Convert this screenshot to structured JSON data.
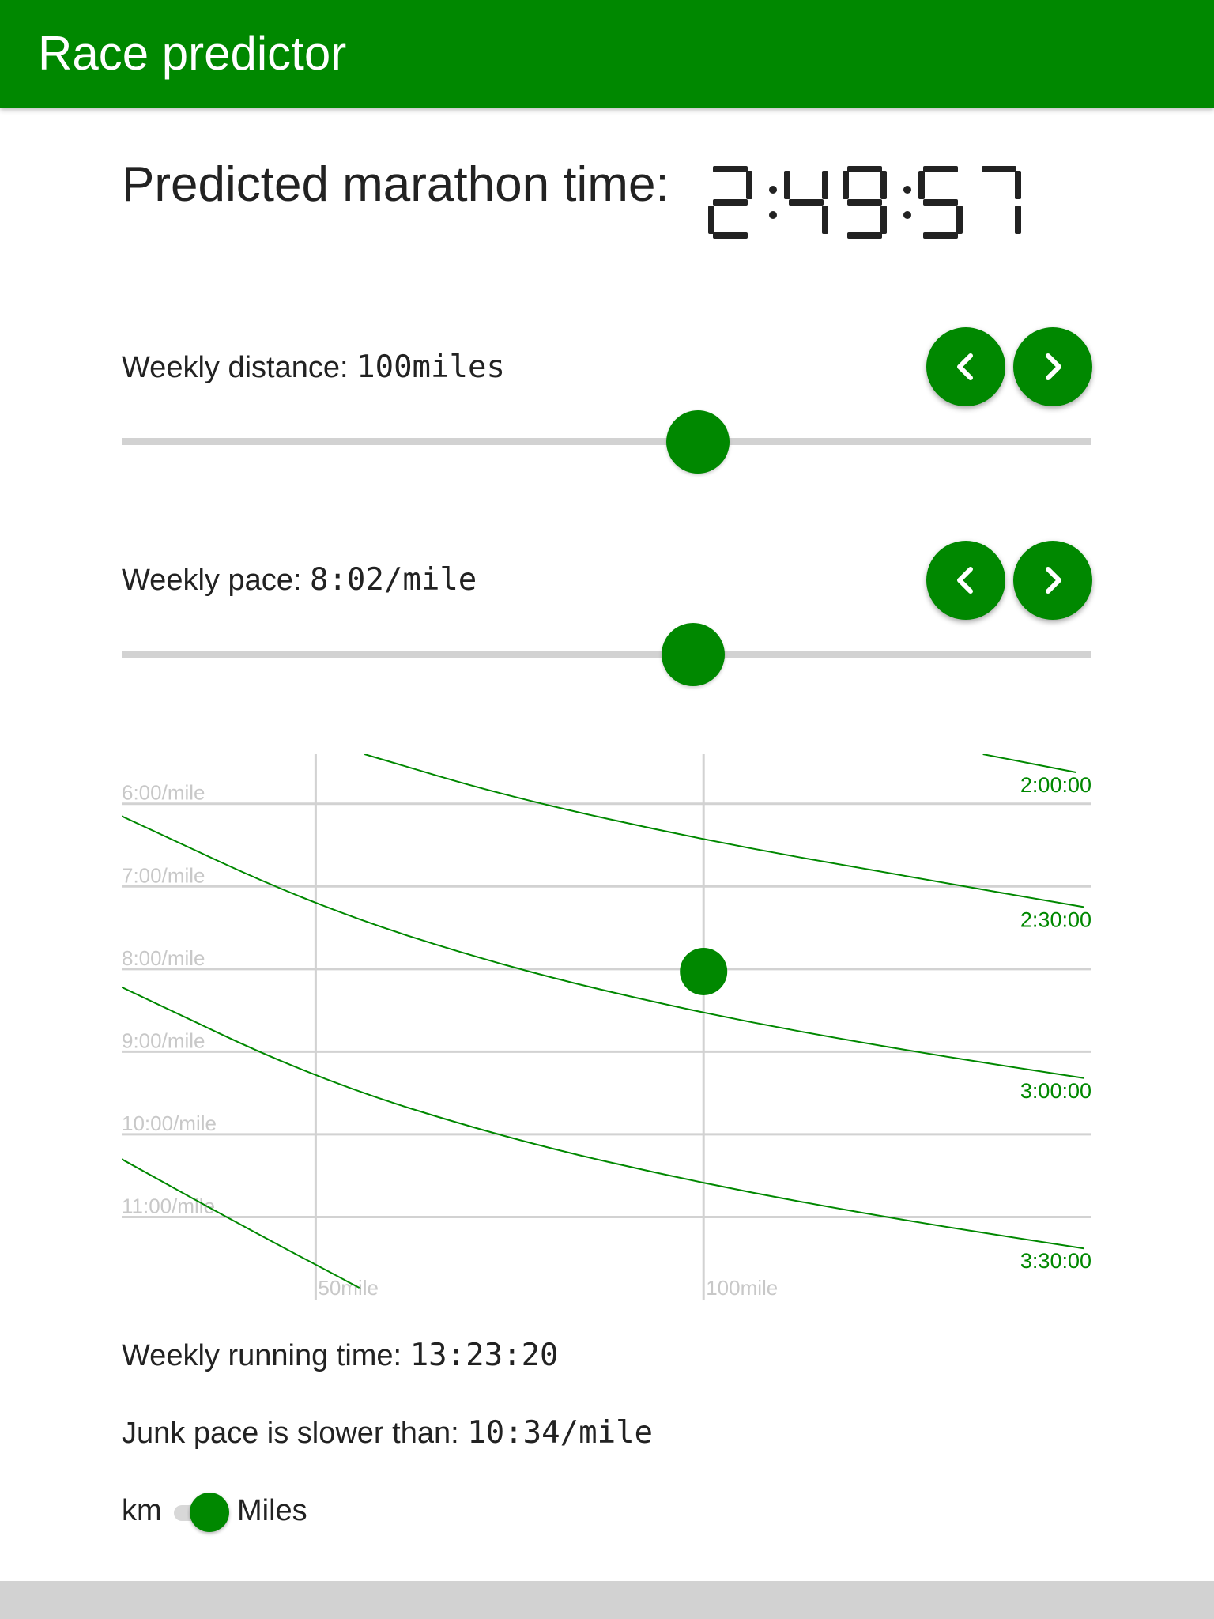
{
  "app_bar": {
    "title": "Race predictor"
  },
  "prediction": {
    "label": "Predicted marathon time:",
    "value": "2:49:57"
  },
  "weekly_distance": {
    "label": "Weekly distance:",
    "value": "100miles",
    "slider_fraction": 0.594,
    "prev_icon": "chevron-left-icon",
    "next_icon": "chevron-right-icon"
  },
  "weekly_pace": {
    "label": "Weekly pace:",
    "value": "8:02/mile",
    "slider_fraction": 0.589,
    "prev_icon": "chevron-left-icon",
    "next_icon": "chevron-right-icon"
  },
  "chart_data": {
    "type": "line",
    "title": "",
    "xlabel": "",
    "ylabel": "",
    "x_ticks": [
      {
        "label": "50mile",
        "value": 50
      },
      {
        "label": "100mile",
        "value": 100
      }
    ],
    "y_ticks": [
      {
        "label": "6:00/mile",
        "value": 6
      },
      {
        "label": "7:00/mile",
        "value": 7
      },
      {
        "label": "8:00/mile",
        "value": 8
      },
      {
        "label": "9:00/mile",
        "value": 9
      },
      {
        "label": "10:00/mile",
        "value": 10
      },
      {
        "label": "11:00/mile",
        "value": 11
      }
    ],
    "xlim": [
      25,
      150
    ],
    "ylim": [
      5.4,
      12.0
    ],
    "y_inverted": true,
    "grid": true,
    "series": [
      {
        "name": "2:00:00",
        "x": [
          136,
          148
        ],
        "y": [
          5.4,
          5.62
        ]
      },
      {
        "name": "2:30:00",
        "x": [
          56.3,
          75,
          100,
          125,
          149
        ],
        "y": [
          5.4,
          5.92,
          6.44,
          6.86,
          7.25
        ]
      },
      {
        "name": "3:00:00",
        "x": [
          25,
          50,
          75,
          100,
          125,
          149
        ],
        "y": [
          6.15,
          7.24,
          7.99,
          8.54,
          8.97,
          9.32
        ]
      },
      {
        "name": "3:30:00",
        "x": [
          25,
          50,
          75,
          100,
          125,
          149
        ],
        "y": [
          8.22,
          9.33,
          10.06,
          10.6,
          11.03,
          11.38
        ]
      },
      {
        "name": "",
        "x": [
          25,
          40,
          55.7
        ],
        "y": [
          10.3,
          11.08,
          11.86
        ]
      }
    ],
    "current_point": {
      "x": 100,
      "y": 8.03
    },
    "colors": {
      "line": "#008800",
      "grid": "#d2d2d2",
      "tick_label": "#c8c8c8",
      "series_label": "#008800"
    }
  },
  "weekly_running_time": {
    "label": "Weekly running time:",
    "value": "13:23:20"
  },
  "junk_pace": {
    "label": "Junk pace is slower than:",
    "value": "10:34/mile"
  },
  "units_toggle": {
    "left_label": "km",
    "right_label": "Miles",
    "selected": "Miles"
  },
  "colors": {
    "accent": "#008800",
    "track": "#d2d2d2",
    "text": "#222222"
  }
}
